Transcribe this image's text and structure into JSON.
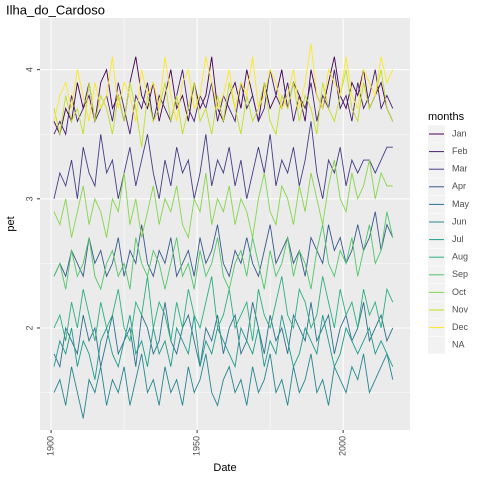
{
  "chart_data": {
    "type": "line",
    "title": "Ilha_do_Cardoso",
    "x_label": "Date",
    "y_label": "pet",
    "legend_title": "months",
    "na_label": "NA",
    "x": [
      1901,
      1903,
      1905,
      1907,
      1909,
      1911,
      1913,
      1915,
      1917,
      1919,
      1921,
      1923,
      1925,
      1927,
      1929,
      1931,
      1933,
      1935,
      1937,
      1939,
      1941,
      1943,
      1945,
      1947,
      1949,
      1951,
      1953,
      1955,
      1957,
      1959,
      1961,
      1963,
      1965,
      1967,
      1969,
      1971,
      1973,
      1975,
      1977,
      1979,
      1981,
      1983,
      1985,
      1987,
      1989,
      1991,
      1993,
      1995,
      1997,
      1999,
      2001,
      2003,
      2005,
      2007,
      2009,
      2011,
      2013,
      2015,
      2017
    ],
    "xlim": [
      1896.2,
      2022.9
    ],
    "xticks": [
      1900,
      1950,
      2000
    ],
    "x_minor_ticks": [
      1925,
      1975
    ],
    "ylim": [
      1.21,
      4.4
    ],
    "yticks": [
      2,
      3,
      4
    ],
    "y_minor_ticks": [
      1.5,
      2.5,
      3.5
    ],
    "grid": true,
    "series": [
      {
        "name": "Jan",
        "color": "#440154",
        "values": [
          3.6,
          3.5,
          3.7,
          3.6,
          3.9,
          3.7,
          3.8,
          3.6,
          3.9,
          4.0,
          3.7,
          3.8,
          3.6,
          3.9,
          4.1,
          3.8,
          3.7,
          3.9,
          3.6,
          3.8,
          4.0,
          3.7,
          3.8,
          3.6,
          3.9,
          3.7,
          3.8,
          4.1,
          3.7,
          3.6,
          3.8,
          3.9,
          3.7,
          4.0,
          3.8,
          3.6,
          3.9,
          3.7,
          3.8,
          4.0,
          3.7,
          3.9,
          3.8,
          3.6,
          4.0,
          3.8,
          3.7,
          3.9,
          4.1,
          3.8,
          3.7,
          3.9,
          3.8,
          4.0,
          3.7,
          3.8,
          3.9,
          3.7,
          3.6
        ]
      },
      {
        "name": "Feb",
        "color": "#482173",
        "values": [
          3.5,
          3.6,
          3.5,
          3.8,
          3.6,
          3.7,
          3.9,
          3.6,
          3.7,
          3.8,
          3.6,
          3.9,
          3.7,
          3.5,
          3.8,
          3.7,
          3.9,
          3.6,
          3.8,
          3.7,
          3.6,
          3.8,
          4.0,
          3.7,
          3.6,
          3.8,
          3.7,
          3.9,
          3.6,
          3.8,
          3.7,
          3.6,
          3.9,
          3.7,
          3.8,
          3.6,
          3.7,
          4.0,
          3.8,
          3.7,
          3.9,
          3.6,
          3.8,
          3.7,
          3.9,
          3.6,
          3.8,
          3.7,
          4.0,
          3.7,
          3.8,
          3.6,
          3.9,
          3.7,
          3.8,
          4.0,
          3.7,
          3.8,
          3.7
        ]
      },
      {
        "name": "Mar",
        "color": "#433E85",
        "values": [
          3.0,
          3.2,
          3.1,
          3.3,
          3.0,
          3.4,
          3.2,
          3.1,
          3.5,
          3.2,
          3.3,
          3.0,
          3.2,
          3.4,
          3.1,
          3.3,
          3.5,
          3.2,
          3.0,
          3.3,
          3.1,
          3.4,
          3.2,
          3.3,
          3.0,
          3.2,
          3.5,
          3.1,
          3.3,
          3.2,
          3.4,
          3.1,
          3.3,
          3.0,
          3.2,
          3.4,
          3.2,
          3.5,
          3.1,
          3.3,
          3.2,
          3.4,
          3.1,
          3.3,
          3.6,
          3.2,
          3.0,
          3.3,
          3.2,
          3.4,
          3.1,
          3.3,
          3.2,
          3.3,
          3.3,
          3.2,
          3.3,
          3.4,
          3.4
        ]
      },
      {
        "name": "Apr",
        "color": "#38598C",
        "values": [
          2.4,
          2.5,
          2.4,
          2.6,
          2.5,
          2.4,
          2.7,
          2.5,
          2.6,
          2.4,
          2.5,
          2.7,
          2.4,
          2.6,
          2.5,
          2.8,
          2.5,
          2.4,
          2.6,
          2.5,
          2.7,
          2.4,
          2.5,
          2.6,
          2.4,
          2.7,
          2.5,
          2.6,
          2.8,
          2.5,
          2.4,
          2.6,
          2.5,
          2.7,
          2.5,
          2.4,
          2.6,
          2.8,
          2.5,
          2.6,
          2.7,
          2.5,
          2.6,
          2.4,
          2.7,
          2.6,
          2.5,
          2.8,
          2.6,
          2.7,
          2.5,
          2.6,
          2.8,
          2.6,
          2.7,
          2.9,
          2.6,
          2.8,
          2.7
        ]
      },
      {
        "name": "May",
        "color": "#2D708E",
        "values": [
          1.8,
          1.7,
          2.0,
          1.9,
          1.8,
          2.1,
          1.9,
          2.0,
          1.7,
          1.9,
          2.1,
          1.8,
          1.9,
          2.0,
          1.7,
          2.1,
          2.0,
          1.8,
          1.9,
          2.2,
          1.9,
          1.8,
          2.0,
          2.1,
          1.9,
          1.7,
          2.0,
          1.9,
          2.1,
          1.8,
          2.0,
          2.1,
          1.8,
          1.9,
          2.2,
          2.0,
          1.8,
          2.1,
          1.9,
          2.0,
          1.8,
          2.1,
          2.0,
          1.9,
          2.2,
          1.9,
          2.0,
          2.1,
          1.8,
          2.0,
          2.1,
          1.9,
          2.0,
          2.2,
          1.9,
          2.0,
          2.1,
          1.9,
          2.0
        ]
      },
      {
        "name": "Jun",
        "color": "#25858E",
        "values": [
          1.5,
          1.6,
          1.4,
          1.7,
          1.5,
          1.3,
          1.6,
          1.5,
          1.7,
          1.4,
          1.6,
          1.5,
          1.7,
          1.4,
          1.6,
          1.8,
          1.5,
          1.6,
          1.4,
          1.7,
          1.5,
          1.6,
          1.4,
          1.7,
          1.5,
          1.6,
          1.8,
          1.5,
          1.4,
          1.6,
          1.7,
          1.5,
          1.6,
          1.4,
          1.7,
          1.5,
          1.6,
          1.8,
          1.5,
          1.6,
          1.4,
          1.7,
          1.5,
          1.6,
          1.8,
          1.5,
          1.6,
          1.4,
          1.7,
          1.6,
          1.5,
          1.7,
          1.6,
          1.8,
          1.5,
          1.6,
          1.7,
          1.8,
          1.6
        ]
      },
      {
        "name": "Jul",
        "color": "#1E9B8A",
        "values": [
          1.7,
          1.9,
          1.8,
          2.0,
          1.7,
          1.9,
          1.8,
          1.6,
          1.9,
          2.0,
          1.8,
          1.7,
          1.9,
          2.1,
          1.8,
          1.9,
          1.7,
          2.0,
          1.8,
          1.9,
          1.7,
          2.0,
          1.9,
          1.8,
          2.1,
          1.7,
          1.9,
          1.8,
          2.0,
          1.9,
          1.8,
          1.7,
          2.0,
          1.9,
          1.8,
          2.0,
          1.7,
          1.9,
          1.8,
          2.1,
          1.9,
          1.7,
          1.8,
          2.0,
          1.9,
          1.8,
          2.1,
          1.9,
          1.7,
          1.8,
          2.0,
          1.9,
          1.8,
          1.9,
          2.0,
          1.8,
          1.9,
          1.8,
          1.7
        ]
      },
      {
        "name": "Aug",
        "color": "#2BB07F",
        "values": [
          2.0,
          2.1,
          1.9,
          2.2,
          2.0,
          2.3,
          2.1,
          1.9,
          2.2,
          2.0,
          2.1,
          2.3,
          2.0,
          1.9,
          2.2,
          2.1,
          2.4,
          2.0,
          2.2,
          2.1,
          1.9,
          2.2,
          2.0,
          2.3,
          2.1,
          2.0,
          2.2,
          2.4,
          2.0,
          2.1,
          2.3,
          2.0,
          2.1,
          2.2,
          1.9,
          2.3,
          2.1,
          2.0,
          2.2,
          2.4,
          2.1,
          2.0,
          2.3,
          2.2,
          2.0,
          2.1,
          2.4,
          2.2,
          2.0,
          2.3,
          2.1,
          2.2,
          2.0,
          2.3,
          2.1,
          2.2,
          2.0,
          2.3,
          2.2
        ]
      },
      {
        "name": "Sep",
        "color": "#51C56A",
        "values": [
          2.4,
          2.5,
          2.3,
          2.6,
          2.4,
          2.5,
          2.7,
          2.4,
          2.3,
          2.5,
          2.6,
          2.4,
          2.5,
          2.3,
          2.7,
          2.5,
          2.4,
          2.6,
          2.5,
          2.3,
          2.5,
          2.7,
          2.4,
          2.5,
          2.3,
          2.6,
          2.4,
          2.5,
          2.7,
          2.4,
          2.3,
          2.5,
          2.6,
          2.4,
          2.7,
          2.5,
          2.3,
          2.6,
          2.4,
          2.5,
          2.7,
          2.4,
          2.6,
          2.5,
          2.3,
          2.6,
          2.8,
          2.5,
          2.4,
          2.6,
          2.5,
          2.7,
          2.4,
          2.6,
          2.8,
          2.5,
          2.6,
          2.9,
          2.7
        ]
      },
      {
        "name": "Oct",
        "color": "#85D54A",
        "values": [
          2.9,
          2.8,
          3.0,
          2.7,
          2.9,
          3.1,
          2.8,
          3.0,
          2.9,
          2.7,
          3.0,
          2.9,
          3.2,
          2.8,
          3.0,
          2.7,
          2.9,
          3.1,
          2.8,
          3.0,
          2.9,
          3.1,
          2.8,
          2.7,
          3.0,
          2.9,
          3.2,
          2.8,
          3.0,
          2.9,
          3.1,
          2.8,
          3.0,
          2.9,
          2.7,
          3.0,
          3.2,
          2.9,
          2.8,
          3.1,
          3.0,
          2.8,
          3.1,
          2.9,
          3.2,
          3.0,
          2.8,
          3.1,
          3.3,
          3.0,
          2.9,
          3.2,
          3.0,
          3.1,
          3.3,
          3.0,
          3.2,
          3.1,
          3.1
        ]
      },
      {
        "name": "Nov",
        "color": "#C2DF23",
        "values": [
          3.7,
          3.5,
          3.8,
          3.6,
          3.7,
          3.5,
          3.9,
          3.6,
          3.8,
          3.7,
          3.5,
          3.8,
          3.6,
          3.9,
          3.7,
          3.4,
          3.8,
          3.6,
          3.7,
          3.9,
          3.6,
          3.8,
          3.5,
          3.7,
          3.9,
          3.6,
          3.7,
          3.5,
          3.8,
          3.6,
          3.9,
          3.7,
          3.5,
          3.8,
          3.6,
          3.7,
          3.9,
          3.6,
          3.5,
          3.8,
          3.7,
          3.9,
          3.6,
          3.8,
          3.7,
          3.5,
          3.9,
          3.7,
          3.6,
          3.8,
          4.0,
          3.7,
          3.6,
          3.9,
          3.7,
          3.8,
          4.0,
          3.7,
          3.6
        ]
      },
      {
        "name": "Dec",
        "color": "#FDE725",
        "values": [
          3.6,
          3.8,
          3.9,
          3.7,
          4.0,
          3.8,
          3.6,
          3.9,
          3.7,
          3.8,
          4.1,
          3.7,
          3.9,
          3.8,
          3.6,
          4.0,
          3.8,
          3.9,
          3.7,
          4.1,
          3.8,
          3.6,
          3.9,
          4.0,
          3.7,
          3.8,
          4.1,
          3.9,
          3.7,
          3.8,
          4.0,
          3.7,
          3.9,
          3.8,
          4.1,
          3.7,
          3.8,
          4.0,
          3.9,
          3.7,
          3.8,
          4.0,
          3.7,
          3.9,
          4.2,
          3.8,
          3.7,
          4.0,
          3.9,
          3.8,
          4.1,
          3.8,
          3.7,
          4.0,
          3.9,
          3.8,
          4.1,
          3.9,
          4.0
        ]
      }
    ]
  }
}
